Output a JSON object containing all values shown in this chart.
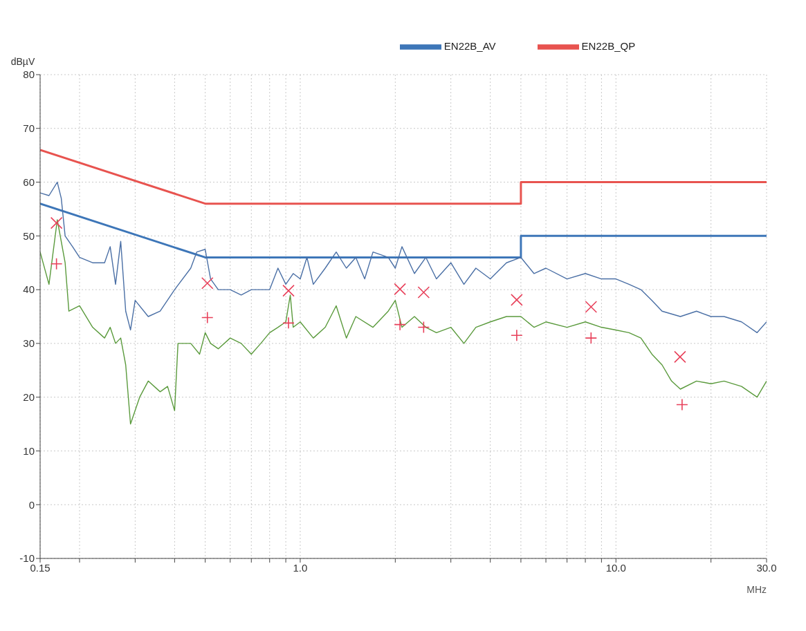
{
  "chart_data": {
    "type": "line",
    "xlabel": "MHz",
    "ylabel": "dBµV",
    "log": "x",
    "grid": true,
    "legend": "top",
    "line_style": "solid",
    "marker": "none",
    "xlim": [
      0.15,
      30
    ],
    "xticks": [
      0.15,
      {
        "value": 0.2,
        "label": null
      },
      {
        "value": 0.3,
        "label": null
      },
      {
        "value": 0.4,
        "label": null
      },
      {
        "value": 0.5,
        "label": null
      },
      {
        "value": 0.6,
        "label": null
      },
      {
        "value": 0.7,
        "label": null
      },
      {
        "value": 0.8,
        "label": null
      },
      {
        "value": 0.9,
        "label": null
      },
      {
        "value": 1,
        "label": "1.0"
      },
      {
        "value": 2,
        "label": null
      },
      {
        "value": 3,
        "label": null
      },
      {
        "value": 4,
        "label": null
      },
      {
        "value": 5,
        "label": null
      },
      {
        "value": 6,
        "label": null
      },
      {
        "value": 7,
        "label": null
      },
      {
        "value": 8,
        "label": null
      },
      {
        "value": 9,
        "label": null
      },
      {
        "value": 10,
        "label": "10.0"
      },
      {
        "value": 20,
        "label": null
      },
      {
        "value": 30,
        "label": "30.0"
      }
    ],
    "ylim": [
      -10,
      80
    ],
    "yticks": [
      -10,
      0,
      10,
      20,
      30,
      40,
      50,
      60,
      70,
      80
    ],
    "series": [
      {
        "name": "EN22B_QP",
        "color": "#e8534f",
        "x": [
          0.15,
          0.5,
          5,
          5,
          30
        ],
        "values": [
          66,
          56,
          56,
          60,
          60
        ]
      },
      {
        "name": "EN22B_AV",
        "color": "#3d76b8",
        "x": [
          0.15,
          0.5,
          5,
          5,
          30
        ],
        "values": [
          56,
          46,
          46,
          50,
          50
        ]
      },
      {
        "color": "#4a6fa5",
        "x": [
          0.15,
          0.16,
          0.17,
          0.175,
          0.18,
          0.19,
          0.2,
          0.22,
          0.24,
          0.25,
          0.26,
          0.27,
          0.28,
          0.29,
          0.3,
          0.33,
          0.36,
          0.4,
          0.45,
          0.47,
          0.5,
          0.52,
          0.55,
          0.6,
          0.65,
          0.7,
          0.8,
          0.85,
          0.9,
          0.95,
          1,
          1.05,
          1.1,
          1.2,
          1.3,
          1.4,
          1.5,
          1.6,
          1.7,
          1.9,
          2,
          2.1,
          2.3,
          2.5,
          2.7,
          3,
          3.3,
          3.6,
          4,
          4.5,
          5,
          5.5,
          6,
          7,
          8,
          9,
          10,
          11,
          12,
          13,
          14,
          16,
          18,
          20,
          22,
          25,
          28,
          30
        ],
        "values": [
          58,
          57.5,
          60,
          57,
          50,
          48,
          46,
          45,
          45,
          48,
          41,
          49,
          36,
          32.5,
          38,
          35,
          36,
          40,
          44,
          47,
          47.5,
          42,
          40,
          40,
          39,
          40,
          40,
          44,
          41,
          43,
          42,
          46,
          41,
          44,
          47,
          44,
          46,
          42,
          47,
          46,
          44,
          48,
          43,
          46,
          42,
          45,
          41,
          44,
          42,
          45,
          46,
          43,
          44,
          42,
          43,
          42,
          42,
          41,
          40,
          38,
          36,
          35,
          36,
          35,
          35,
          34,
          32,
          34
        ]
      },
      {
        "color": "#5a9a3c",
        "x": [
          0.15,
          0.16,
          0.17,
          0.18,
          0.185,
          0.2,
          0.22,
          0.24,
          0.25,
          0.26,
          0.27,
          0.28,
          0.29,
          0.31,
          0.33,
          0.36,
          0.38,
          0.4,
          0.41,
          0.45,
          0.48,
          0.5,
          0.52,
          0.55,
          0.6,
          0.65,
          0.7,
          0.75,
          0.8,
          0.85,
          0.9,
          0.93,
          0.95,
          1,
          1.1,
          1.2,
          1.3,
          1.4,
          1.5,
          1.7,
          1.9,
          2,
          2.1,
          2.3,
          2.5,
          2.7,
          3,
          3.3,
          3.6,
          4,
          4.5,
          5,
          5.5,
          6,
          7,
          8,
          9,
          10,
          11,
          12,
          13,
          14,
          15,
          16,
          18,
          20,
          22,
          25,
          28,
          30
        ],
        "values": [
          47,
          41,
          53,
          45,
          36,
          37,
          33,
          31,
          33,
          30,
          31,
          26,
          15,
          20,
          23,
          21,
          22,
          17.5,
          30,
          30,
          28,
          32,
          30,
          29,
          31,
          30,
          28,
          30,
          32,
          33,
          34,
          39,
          33,
          34,
          31,
          33,
          37,
          31,
          35,
          33,
          36,
          38,
          33,
          35,
          33,
          32,
          33,
          30,
          33,
          34,
          35,
          35,
          33,
          34,
          33,
          34,
          33,
          32.5,
          32,
          31,
          28,
          26,
          23,
          21.5,
          23,
          22.5,
          23,
          22,
          20,
          23
        ]
      },
      {
        "type": "scatter",
        "marker": "cross",
        "color": "#e8405a",
        "x": [
          0.169,
          0.508,
          0.918,
          2.07,
          2.46,
          4.85,
          8.34,
          15.96
        ],
        "values": [
          52.4,
          41.2,
          39.8,
          40.1,
          39.5,
          38.1,
          36.8,
          27.5
        ]
      },
      {
        "type": "scatter",
        "marker": "plus",
        "color": "#e8405a",
        "x": [
          0.169,
          0.508,
          0.918,
          2.07,
          2.46,
          4.85,
          8.34,
          16.2
        ],
        "values": [
          44.8,
          34.8,
          33.8,
          33.5,
          33,
          31.5,
          31,
          18.6
        ]
      }
    ]
  }
}
